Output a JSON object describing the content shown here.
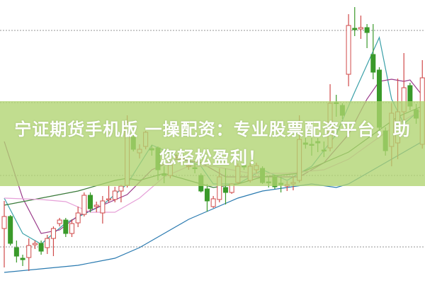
{
  "banner": {
    "line1": "宁证期货手机版 一操配资：专业股票配资平台，助",
    "line2": "您轻松盈利！"
  },
  "colors": {
    "up": "#d04a4a",
    "down": "#3a9a2a",
    "grid": "#aaaaaa",
    "banner": "#b0d470"
  },
  "chart_data": {
    "type": "candlestick",
    "title": "",
    "xlabel": "",
    "ylabel": "",
    "ylim": [
      0,
      400
    ],
    "grid": true,
    "grid_levels": [
      51,
      152,
      255,
      357
    ],
    "candles": [
      [
        77,
        94,
        116,
        22
      ],
      [
        94,
        56,
        96,
        53
      ],
      [
        50,
        38,
        60,
        29
      ],
      [
        35,
        33,
        40,
        24
      ],
      [
        36,
        53,
        63,
        17
      ],
      [
        54,
        56,
        60,
        48
      ],
      [
        56,
        45,
        60,
        40
      ],
      [
        50,
        63,
        68,
        41
      ],
      [
        63,
        77,
        80,
        38
      ],
      [
        84,
        89,
        92,
        80
      ],
      [
        89,
        70,
        92,
        65
      ],
      [
        70,
        84,
        90,
        65
      ],
      [
        85,
        99,
        108,
        79
      ],
      [
        97,
        124,
        128,
        94
      ],
      [
        124,
        105,
        128,
        100
      ],
      [
        108,
        110,
        115,
        100
      ],
      [
        99,
        116,
        123,
        84
      ],
      [
        118,
        119,
        138,
        114
      ],
      [
        118,
        130,
        136,
        114
      ],
      [
        130,
        137,
        139,
        114
      ],
      [
        138,
        227,
        237,
        135
      ],
      [
        206,
        189,
        215,
        186
      ],
      [
        184,
        189,
        196,
        176
      ],
      [
        193,
        213,
        215,
        189
      ],
      [
        190,
        188,
        195,
        180
      ],
      [
        191,
        160,
        193,
        145
      ],
      [
        154,
        152,
        165,
        141
      ],
      [
        152,
        167,
        170,
        148
      ],
      [
        178,
        179,
        182,
        175
      ],
      [
        175,
        176,
        180,
        170
      ],
      [
        165,
        166,
        170,
        160
      ],
      [
        163,
        162,
        168,
        155
      ],
      [
        152,
        130,
        155,
        128
      ],
      [
        133,
        116,
        140,
        101
      ],
      [
        108,
        119,
        123,
        106
      ],
      [
        118,
        150,
        162,
        114
      ],
      [
        135,
        128,
        162,
        111
      ],
      [
        128,
        140,
        141,
        126
      ],
      [
        142,
        165,
        169,
        140
      ],
      [
        166,
        164,
        170,
        160
      ],
      [
        145,
        165,
        170,
        142
      ],
      [
        160,
        166,
        170,
        155
      ],
      [
        162,
        142,
        165,
        140
      ],
      [
        143,
        142,
        150,
        135
      ],
      [
        150,
        136,
        153,
        133
      ],
      [
        141,
        139,
        150,
        128
      ],
      [
        137,
        139,
        144,
        130
      ],
      [
        140,
        142,
        150,
        131
      ],
      [
        145,
        203,
        237,
        142
      ],
      [
        198,
        196,
        205,
        190
      ],
      [
        196,
        195,
        205,
        180
      ],
      [
        200,
        198,
        205,
        185
      ],
      [
        188,
        187,
        200,
        178
      ],
      [
        191,
        254,
        281,
        186
      ],
      [
        255,
        254,
        266,
        235
      ],
      [
        251,
        237,
        254,
        232
      ],
      [
        295,
        364,
        380,
        278
      ],
      [
        360,
        358,
        390,
        349
      ],
      [
        359,
        361,
        378,
        345
      ],
      [
        361,
        354,
        366,
        332
      ],
      [
        323,
        298,
        366,
        288
      ],
      [
        301,
        220,
        305,
        216
      ],
      [
        215,
        187,
        220,
        180
      ],
      [
        193,
        240,
        254,
        165
      ],
      [
        198,
        242,
        289,
        175
      ],
      [
        242,
        276,
        325,
        223
      ],
      [
        279,
        250,
        283,
        244
      ],
      [
        245,
        233,
        253,
        225
      ],
      [
        196,
        290,
        315,
        190
      ]
    ],
    "moving_averages": [
      {
        "color": "#3aa0a8",
        "points": [
          [
            0,
            120
          ],
          [
            3,
            70
          ],
          [
            6,
            55
          ],
          [
            10,
            85
          ],
          [
            16,
            110
          ],
          [
            20,
            140
          ],
          [
            24,
            195
          ],
          [
            28,
            180
          ],
          [
            32,
            165
          ],
          [
            34,
            140
          ],
          [
            38,
            140
          ],
          [
            42,
            160
          ],
          [
            46,
            145
          ],
          [
            50,
            165
          ],
          [
            54,
            210
          ],
          [
            57,
            270
          ],
          [
            61,
            347
          ],
          [
            63,
            260
          ],
          [
            65,
            225
          ],
          [
            67,
            240
          ],
          [
            68,
            245
          ]
        ]
      },
      {
        "color": "#9a3a8a",
        "points": [
          [
            0,
            200
          ],
          [
            3,
            120
          ],
          [
            6,
            70
          ],
          [
            9,
            75
          ],
          [
            12,
            95
          ],
          [
            16,
            110
          ],
          [
            20,
            125
          ],
          [
            24,
            160
          ],
          [
            28,
            175
          ],
          [
            32,
            170
          ],
          [
            36,
            150
          ],
          [
            40,
            150
          ],
          [
            44,
            150
          ],
          [
            48,
            150
          ],
          [
            52,
            170
          ],
          [
            56,
            210
          ],
          [
            59,
            260
          ],
          [
            61,
            285
          ],
          [
            63,
            288
          ],
          [
            65,
            285
          ],
          [
            66,
            287
          ],
          [
            68,
            265
          ]
        ]
      },
      {
        "color": "#3a7a3a",
        "points": [
          [
            0,
            110
          ],
          [
            6,
            120
          ],
          [
            12,
            130
          ],
          [
            18,
            145
          ],
          [
            20,
            148
          ],
          [
            22,
            145
          ],
          [
            26,
            155
          ],
          [
            30,
            145
          ],
          [
            34,
            135
          ],
          [
            38,
            140
          ],
          [
            42,
            150
          ],
          [
            48,
            155
          ],
          [
            52,
            170
          ],
          [
            56,
            185
          ],
          [
            60,
            210
          ],
          [
            64,
            235
          ],
          [
            68,
            250
          ]
        ]
      },
      {
        "color": "#e6a0d8",
        "points": [
          [
            0,
            120
          ],
          [
            6,
            118
          ],
          [
            10,
            115
          ],
          [
            14,
            100
          ],
          [
            18,
            100
          ],
          [
            22,
            120
          ],
          [
            26,
            150
          ],
          [
            30,
            165
          ],
          [
            34,
            165
          ],
          [
            40,
            155
          ],
          [
            46,
            155
          ],
          [
            52,
            160
          ],
          [
            56,
            175
          ],
          [
            60,
            200
          ],
          [
            64,
            225
          ],
          [
            68,
            245
          ]
        ]
      },
      {
        "color": "#2a7ab0",
        "points": [
          [
            0,
            15
          ],
          [
            6,
            20
          ],
          [
            12,
            25
          ],
          [
            18,
            35
          ],
          [
            22,
            50
          ],
          [
            26,
            70
          ],
          [
            30,
            90
          ],
          [
            34,
            105
          ],
          [
            38,
            120
          ],
          [
            42,
            130
          ],
          [
            46,
            135
          ],
          [
            50,
            140
          ],
          [
            54,
            135
          ],
          [
            56,
            140
          ],
          [
            60,
            160
          ],
          [
            64,
            180
          ],
          [
            68,
            200
          ]
        ]
      }
    ]
  }
}
